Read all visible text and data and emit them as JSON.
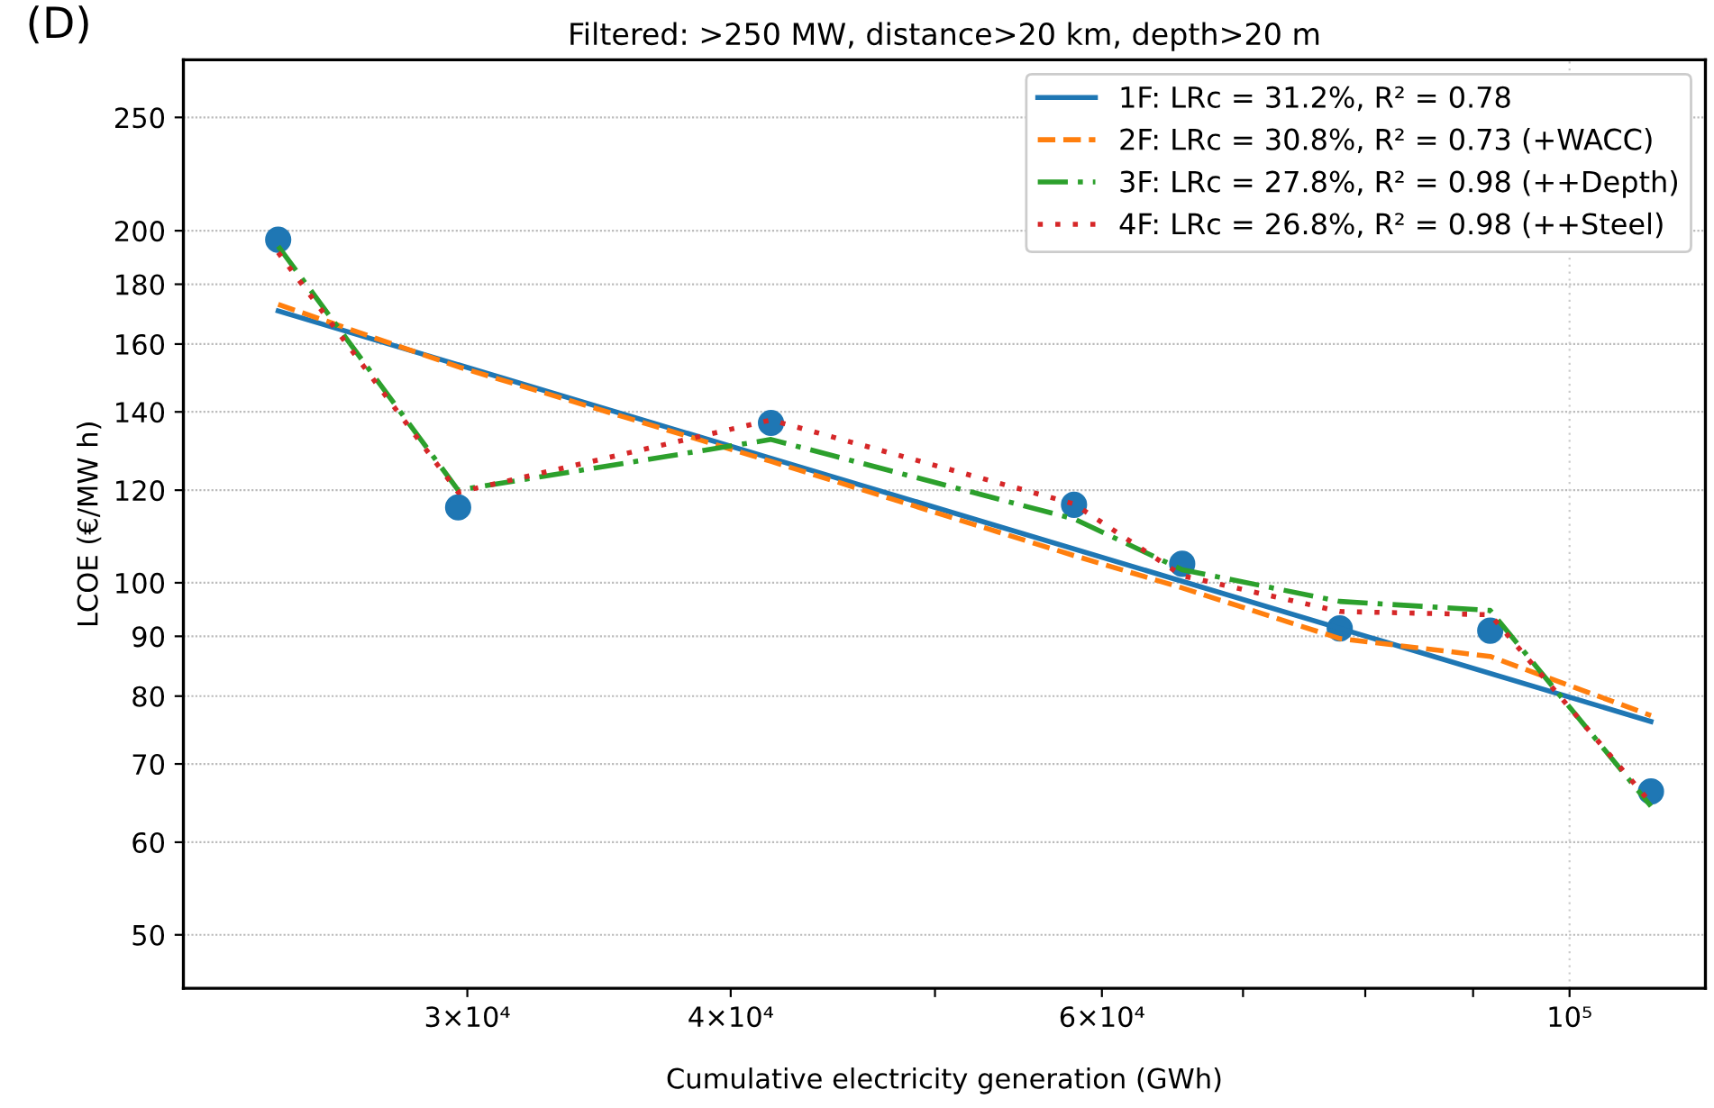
{
  "chart_data": {
    "type": "line",
    "title": "Filtered: >250 MW, distance>20 km, depth>20 m",
    "xlabel": "Cumulative electricity generation (GWh)",
    "ylabel": "LCOE (€/MW h)",
    "annotations": [
      "(D)"
    ],
    "log": "xy",
    "xlim": [
      22000,
      116000
    ],
    "ylim": [
      45,
      280
    ],
    "xticks": [
      {
        "value": 30000,
        "label": "3×10⁴"
      },
      {
        "value": 40000,
        "label": "4×10⁴"
      },
      {
        "value": 50000,
        "label": null
      },
      {
        "value": 60000,
        "label": "6×10⁴"
      },
      {
        "value": 70000,
        "label": null
      },
      {
        "value": 80000,
        "label": null
      },
      {
        "value": 90000,
        "label": null
      },
      {
        "value": 100000,
        "label": "10⁵"
      }
    ],
    "yticks": [
      50,
      60,
      70,
      80,
      90,
      100,
      120,
      140,
      160,
      180,
      200,
      250
    ],
    "grid": "y",
    "legend": "top right",
    "ref_lines": [
      {
        "axis": "x",
        "value": 100000,
        "color": "#cccccc",
        "line_style": "dotted"
      }
    ],
    "series": [
      {
        "name": "1F: LRc = 31.2%, R² = 0.78",
        "color": "#1f77b4",
        "line_style": "solid",
        "marker": "none",
        "x": [
          24400,
          109300
        ],
        "values": [
          170.8,
          76.1
        ]
      },
      {
        "name": "2F: LRc = 30.8%, R² = 0.73 (+WACC)",
        "color": "#ff7f0e",
        "line_style": "dashed",
        "marker": "none",
        "x": [
          24400,
          29700,
          41800,
          58200,
          65500,
          77800,
          91700,
          109300
        ],
        "values": [
          173,
          153,
          127,
          105.5,
          99,
          89.6,
          86.5,
          77
        ]
      },
      {
        "name": "3F: LRc = 27.8%, R² = 0.98 (++Depth)",
        "color": "#2ca02c",
        "line_style": "dashdot",
        "marker": "none",
        "x": [
          24400,
          29700,
          41800,
          58200,
          65500,
          77800,
          91700,
          109300
        ],
        "values": [
          194,
          120,
          132.6,
          113.4,
          102.6,
          96.4,
          94.7,
          64.4
        ]
      },
      {
        "name": "4F: LRc = 26.8%, R² = 0.98 (++Steel)",
        "color": "#d62728",
        "line_style": "dotted",
        "marker": "none",
        "x": [
          24400,
          29700,
          41800,
          58200,
          65500,
          77800,
          91700,
          109300
        ],
        "values": [
          191.6,
          119.5,
          137.8,
          116.8,
          101.4,
          94.5,
          93.9,
          64.8
        ]
      },
      {
        "type": "scatter",
        "color": "#1f77b4",
        "marker": "circle",
        "x": [
          24400,
          29700,
          41800,
          58200,
          65500,
          77800,
          91700,
          109300
        ],
        "values": [
          196.5,
          116,
          137,
          116.6,
          103.8,
          91.4,
          91,
          66.3
        ]
      }
    ]
  }
}
